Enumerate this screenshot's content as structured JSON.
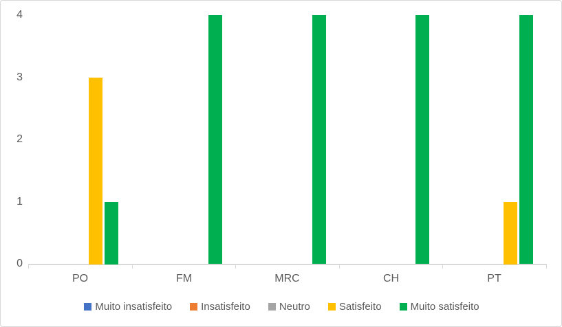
{
  "chart_data": {
    "type": "bar",
    "categories": [
      "PO",
      "FM",
      "MRC",
      "CH",
      "PT"
    ],
    "series": [
      {
        "name": "Muito insatisfeito",
        "color": "#4472C4",
        "values": [
          0,
          0,
          0,
          0,
          0
        ]
      },
      {
        "name": "Insatisfeito",
        "color": "#ED7D31",
        "values": [
          0,
          0,
          0,
          0,
          0
        ]
      },
      {
        "name": "Neutro",
        "color": "#A5A5A5",
        "values": [
          0,
          0,
          0,
          0,
          0
        ]
      },
      {
        "name": "Satisfeito",
        "color": "#FFC000",
        "values": [
          3,
          0,
          0,
          0,
          1
        ]
      },
      {
        "name": "Muito satisfeito",
        "color": "#00B050",
        "values": [
          1,
          4,
          4,
          4,
          4
        ]
      }
    ],
    "title": "",
    "xlabel": "",
    "ylabel": "",
    "ylim": [
      0,
      4
    ],
    "yticks": [
      0,
      1,
      2,
      3,
      4
    ],
    "grid": false,
    "legend_position": "bottom",
    "axis_color": "#D9D9D9",
    "text_color": "#595959",
    "background_color": "#FFFFFF"
  }
}
